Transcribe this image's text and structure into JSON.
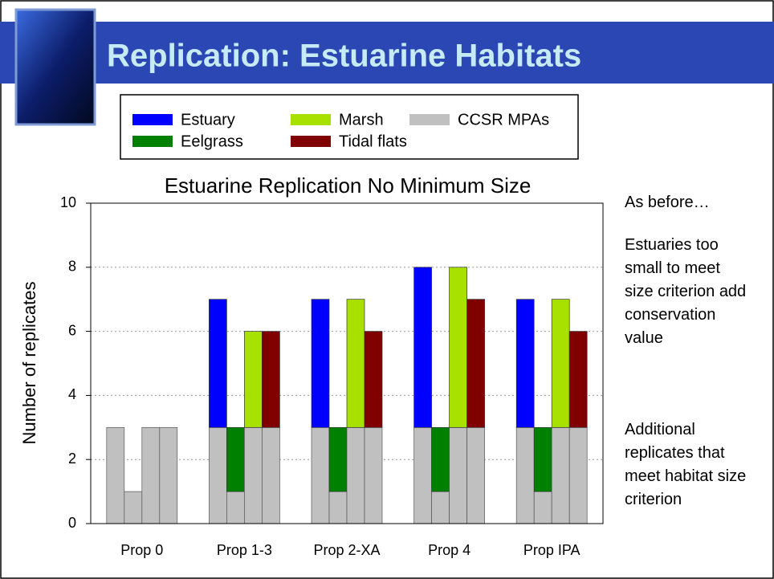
{
  "title": "Replication: Estuarine Habitats",
  "side_notes": [
    "As before…",
    "Estuaries too small to meet size criterion add conservation value",
    "Additional replicates that meet habitat size criterion"
  ],
  "chart_data": {
    "type": "bar",
    "title": "Estuarine Replication No Minimum Size",
    "y_label": "Number of replicates",
    "categories": [
      "Prop 0",
      "Prop 1-3",
      "Prop 2-XA",
      "Prop 4",
      "Prop IPA"
    ],
    "ccsr": {
      "name": "CCSR MPAs",
      "color": "#c0c0c0"
    },
    "series": [
      {
        "name": "Estuary",
        "color": "#0000ff",
        "values": [
          null,
          4,
          4,
          5,
          4
        ],
        "ccsr_values": [
          3,
          3,
          3,
          3,
          3
        ]
      },
      {
        "name": "Eelgrass",
        "color": "#008000",
        "values": [
          null,
          2,
          2,
          2,
          2
        ],
        "ccsr_values": [
          1,
          1,
          1,
          1,
          1
        ]
      },
      {
        "name": "Marsh",
        "color": "#a8e000",
        "values": [
          null,
          3,
          4,
          5,
          4
        ],
        "ccsr_values": [
          3,
          3,
          3,
          3,
          3
        ]
      },
      {
        "name": "Tidal flats",
        "color": "#800000",
        "values": [
          null,
          3,
          3,
          4,
          3
        ],
        "ccsr_values": [
          3,
          3,
          3,
          3,
          3
        ]
      }
    ],
    "ylim": [
      0,
      10
    ],
    "yticks": [
      0,
      2,
      4,
      6,
      8,
      10
    ],
    "grid": true
  }
}
